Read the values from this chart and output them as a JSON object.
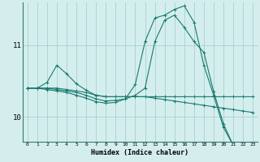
{
  "title": "",
  "xlabel": "Humidex (Indice chaleur)",
  "ylabel": "",
  "background_color": "#d4eeee",
  "grid_color": "#aad0d0",
  "line_color": "#1a7a6e",
  "xlim": [
    -0.5,
    23.5
  ],
  "ylim": [
    9.65,
    11.6
  ],
  "yticks": [
    10,
    11
  ],
  "xticks": [
    0,
    1,
    2,
    3,
    4,
    5,
    6,
    7,
    8,
    9,
    10,
    11,
    12,
    13,
    14,
    15,
    16,
    17,
    18,
    19,
    20,
    21,
    22,
    23
  ],
  "series": [
    [
      10.4,
      10.4,
      10.4,
      10.4,
      10.38,
      10.36,
      10.34,
      10.3,
      10.28,
      10.28,
      10.28,
      10.28,
      10.28,
      10.26,
      10.24,
      10.22,
      10.2,
      10.18,
      10.16,
      10.14,
      10.12,
      10.1,
      10.08,
      10.06
    ],
    [
      10.4,
      10.4,
      10.48,
      10.72,
      10.6,
      10.46,
      10.37,
      10.3,
      10.28,
      10.28,
      10.28,
      10.28,
      10.28,
      10.28,
      10.28,
      10.28,
      10.28,
      10.28,
      10.28,
      10.28,
      10.28,
      10.28,
      10.28,
      10.28
    ],
    [
      10.4,
      10.4,
      10.4,
      10.38,
      10.36,
      10.34,
      10.3,
      10.25,
      10.22,
      10.23,
      10.25,
      10.3,
      10.4,
      11.05,
      11.35,
      11.42,
      11.25,
      11.05,
      10.9,
      10.35,
      9.9,
      9.6,
      9.55,
      9.52
    ],
    [
      10.4,
      10.4,
      10.38,
      10.36,
      10.34,
      10.3,
      10.26,
      10.21,
      10.19,
      10.2,
      10.25,
      10.45,
      11.05,
      11.38,
      11.42,
      11.5,
      11.55,
      11.32,
      10.72,
      10.3,
      9.85,
      9.6,
      9.52,
      9.5
    ]
  ]
}
